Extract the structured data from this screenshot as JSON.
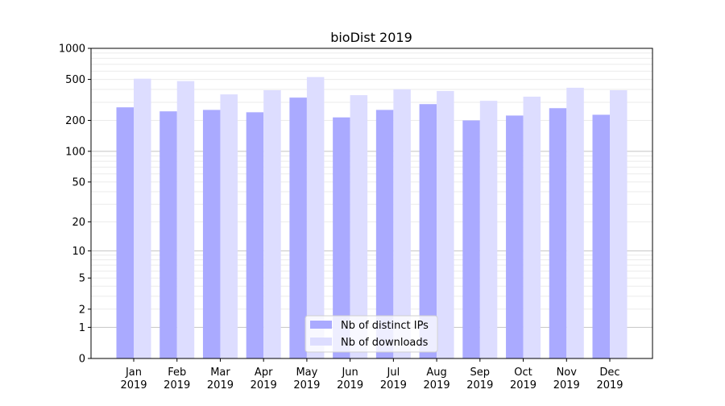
{
  "chart_data": {
    "type": "bar",
    "title": "bioDist 2019",
    "xlabel": "",
    "ylabel": "",
    "yscale": "symlog",
    "ylim": [
      0,
      1000
    ],
    "yticks": [
      0,
      1,
      2,
      5,
      10,
      20,
      50,
      100,
      200,
      500,
      1000
    ],
    "ytick_labels": [
      "0",
      "1",
      "2",
      "5",
      "10",
      "20",
      "50",
      "100",
      "200",
      "500",
      "1000"
    ],
    "grid": true,
    "legend_position": "bottom-center",
    "categories": [
      "Jan\n2019",
      "Feb\n2019",
      "Mar\n2019",
      "Apr\n2019",
      "May\n2019",
      "Jun\n2019",
      "Jul\n2019",
      "Aug\n2019",
      "Sep\n2019",
      "Oct\n2019",
      "Nov\n2019",
      "Dec\n2019"
    ],
    "category_lines": [
      [
        "Jan",
        "2019"
      ],
      [
        "Feb",
        "2019"
      ],
      [
        "Mar",
        "2019"
      ],
      [
        "Apr",
        "2019"
      ],
      [
        "May",
        "2019"
      ],
      [
        "Jun",
        "2019"
      ],
      [
        "Jul",
        "2019"
      ],
      [
        "Aug",
        "2019"
      ],
      [
        "Sep",
        "2019"
      ],
      [
        "Oct",
        "2019"
      ],
      [
        "Nov",
        "2019"
      ],
      [
        "Dec",
        "2019"
      ]
    ],
    "series": [
      {
        "name": "Nb of distinct IPs",
        "color": "#aaaaff",
        "values": [
          268,
          245,
          253,
          240,
          333,
          214,
          253,
          288,
          200,
          223,
          263,
          227
        ]
      },
      {
        "name": "Nb of downloads",
        "color": "#ddddff",
        "values": [
          508,
          481,
          358,
          393,
          527,
          352,
          401,
          386,
          310,
          340,
          415,
          393
        ]
      }
    ]
  }
}
